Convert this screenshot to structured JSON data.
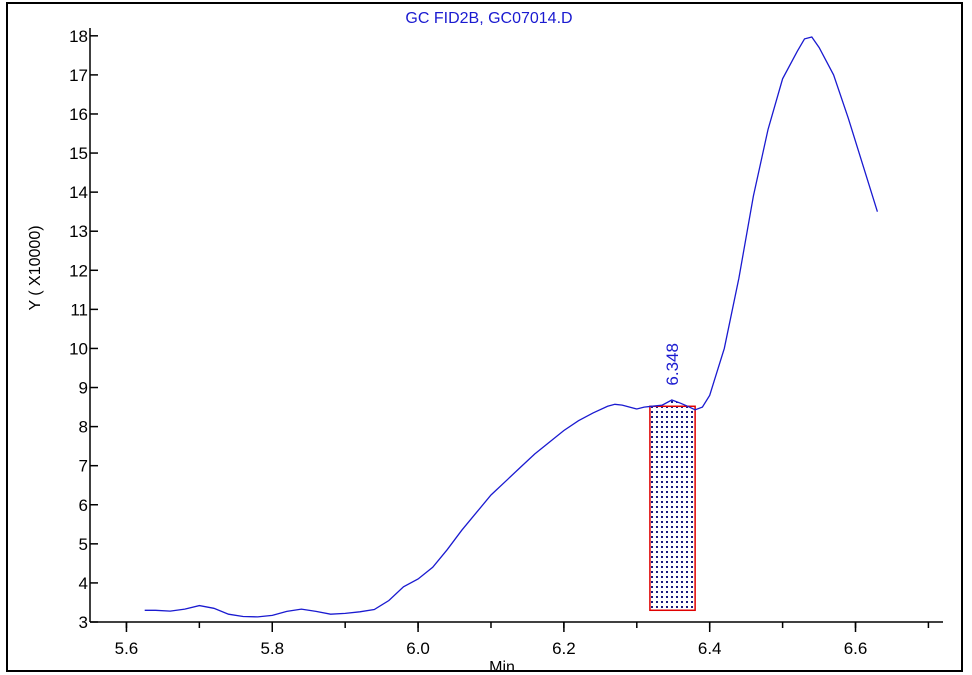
{
  "chart_data": {
    "type": "line",
    "title": "GC FID2B, GC07014.D",
    "xlabel": "Min",
    "ylabel": "Y ( X10000)",
    "xlim": [
      5.55,
      6.72
    ],
    "ylim": [
      3,
      18.2
    ],
    "x_ticks": [
      5.6,
      5.8,
      6.0,
      6.2,
      6.4,
      6.6
    ],
    "x_tick_labels": [
      "5.6",
      "5.8",
      "6.0",
      "6.2",
      "6.4",
      "6.6"
    ],
    "y_ticks": [
      3,
      4,
      5,
      6,
      7,
      8,
      9,
      10,
      11,
      12,
      13,
      14,
      15,
      16,
      17,
      18
    ],
    "y_tick_labels": [
      "3",
      "4",
      "5",
      "6",
      "7",
      "8",
      "9",
      "10",
      "11",
      "12",
      "13",
      "14",
      "15",
      "16",
      "17",
      "18"
    ],
    "series": [
      {
        "color": "#1a1ad0",
        "points": [
          [
            5.625,
            3.3
          ],
          [
            5.64,
            3.3
          ],
          [
            5.66,
            3.28
          ],
          [
            5.68,
            3.33
          ],
          [
            5.7,
            3.42
          ],
          [
            5.72,
            3.35
          ],
          [
            5.74,
            3.2
          ],
          [
            5.76,
            3.14
          ],
          [
            5.78,
            3.13
          ],
          [
            5.8,
            3.17
          ],
          [
            5.82,
            3.27
          ],
          [
            5.84,
            3.33
          ],
          [
            5.86,
            3.27
          ],
          [
            5.88,
            3.2
          ],
          [
            5.9,
            3.22
          ],
          [
            5.92,
            3.26
          ],
          [
            5.94,
            3.32
          ],
          [
            5.96,
            3.55
          ],
          [
            5.98,
            3.9
          ],
          [
            6.0,
            4.1
          ],
          [
            6.02,
            4.4
          ],
          [
            6.04,
            4.85
          ],
          [
            6.06,
            5.35
          ],
          [
            6.08,
            5.8
          ],
          [
            6.1,
            6.25
          ],
          [
            6.12,
            6.6
          ],
          [
            6.14,
            6.95
          ],
          [
            6.16,
            7.3
          ],
          [
            6.18,
            7.6
          ],
          [
            6.2,
            7.9
          ],
          [
            6.22,
            8.15
          ],
          [
            6.24,
            8.35
          ],
          [
            6.26,
            8.52
          ],
          [
            6.27,
            8.57
          ],
          [
            6.28,
            8.55
          ],
          [
            6.3,
            8.45
          ],
          [
            6.31,
            8.5
          ],
          [
            6.32,
            8.52
          ],
          [
            6.335,
            8.55
          ],
          [
            6.348,
            8.68
          ],
          [
            6.36,
            8.6
          ],
          [
            6.37,
            8.52
          ],
          [
            6.38,
            8.43
          ],
          [
            6.39,
            8.5
          ],
          [
            6.4,
            8.8
          ],
          [
            6.42,
            10.0
          ],
          [
            6.44,
            11.8
          ],
          [
            6.46,
            13.9
          ],
          [
            6.48,
            15.6
          ],
          [
            6.5,
            16.9
          ],
          [
            6.52,
            17.6
          ],
          [
            6.53,
            17.92
          ],
          [
            6.54,
            17.97
          ],
          [
            6.55,
            17.7
          ],
          [
            6.57,
            17.0
          ],
          [
            6.59,
            15.9
          ],
          [
            6.61,
            14.7
          ],
          [
            6.63,
            13.5
          ]
        ]
      }
    ],
    "peak": {
      "label": "6.348",
      "x": 6.348,
      "x_start": 6.318,
      "x_end": 6.38,
      "base": 3.3,
      "y_start": 8.52,
      "y_end": 8.43,
      "fill_color": "#1a1a80",
      "border_color": "#e00000"
    }
  }
}
